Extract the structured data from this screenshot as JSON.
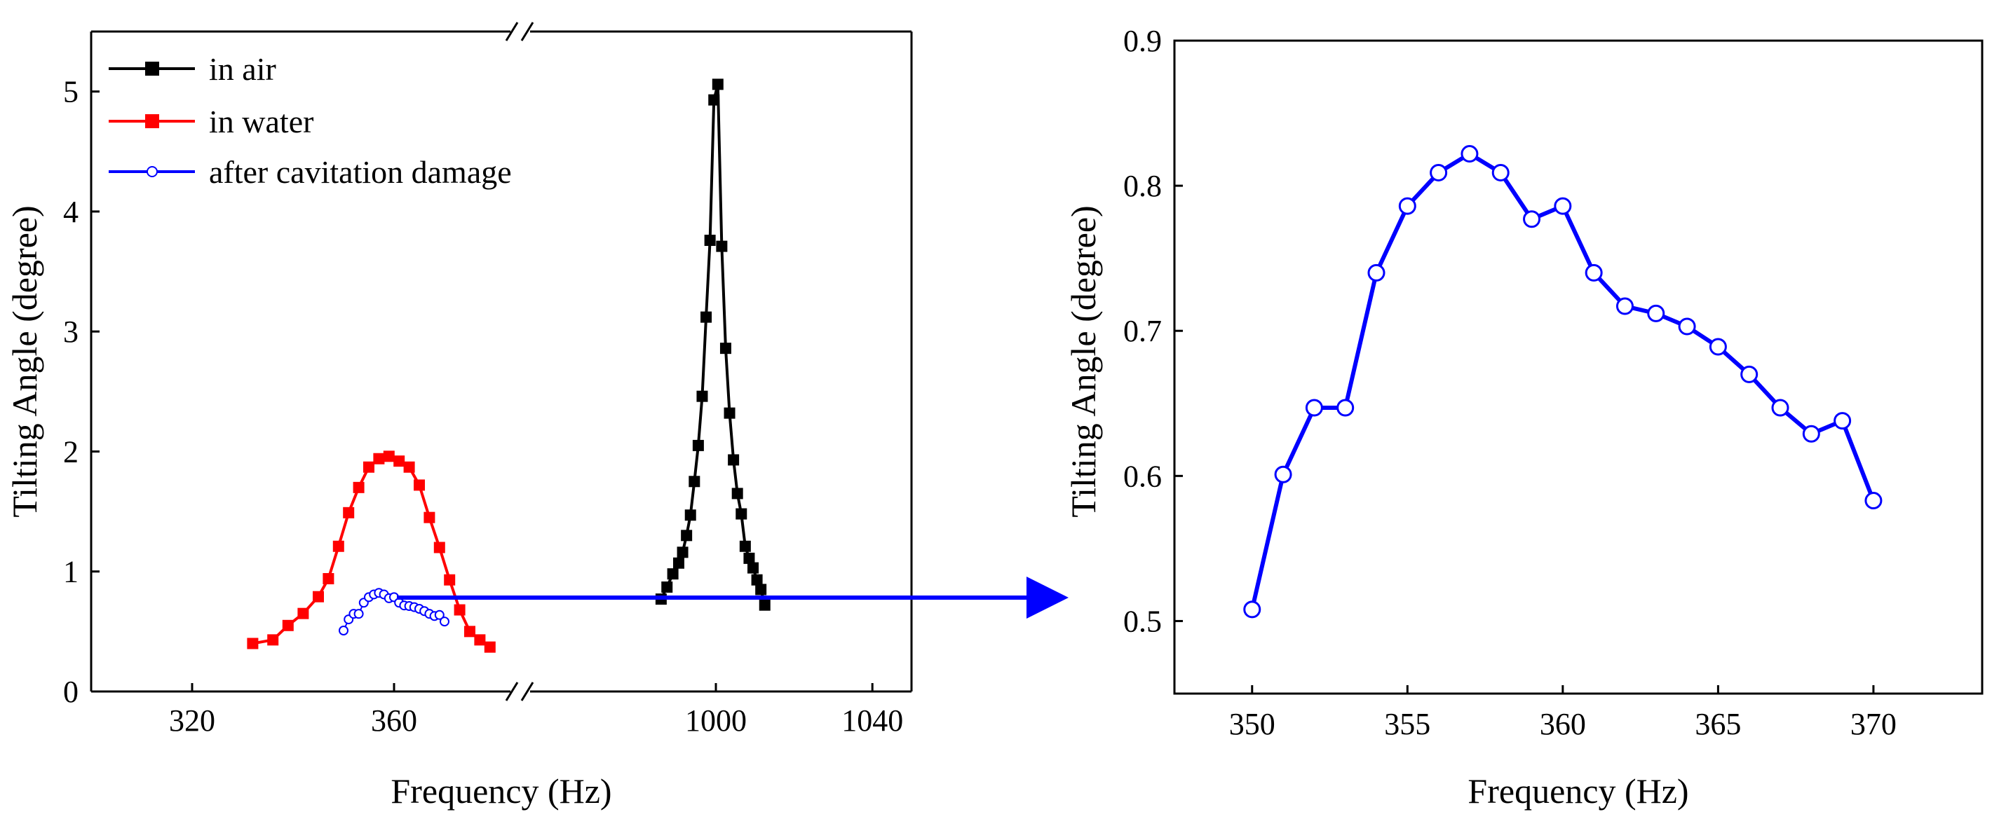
{
  "colors": {
    "air": "#000000",
    "water": "#ff0000",
    "cavitation": "#0000ff",
    "arrow": "#0000ff"
  },
  "chart_data": [
    {
      "type": "line",
      "xlabel": "Frequency (Hz)",
      "ylabel": "Tilting Angle (degree)",
      "axis_break": true,
      "xlim_left_segment": [
        300,
        385
      ],
      "xlim_right_segment": [
        950,
        1050
      ],
      "ylim": [
        0,
        5.5
      ],
      "x_ticks_left": [
        320,
        360
      ],
      "x_ticks_right": [
        1000,
        1040
      ],
      "y_ticks": [
        0,
        1,
        2,
        3,
        4,
        5
      ],
      "legend_position": "top-left",
      "series": [
        {
          "name": "in air",
          "marker": "filled-square",
          "x": [
            986,
            987.5,
            989,
            990.5,
            991.5,
            992.5,
            993.5,
            994.5,
            995.5,
            996.5,
            997.5,
            998.5,
            999.5,
            1000.5,
            1001.5,
            1002.5,
            1003.5,
            1004.5,
            1005.5,
            1006.5,
            1007.5,
            1008.5,
            1009.5,
            1010.5,
            1011.5,
            1012.5
          ],
          "values": [
            0.77,
            0.87,
            0.98,
            1.07,
            1.16,
            1.3,
            1.47,
            1.75,
            2.05,
            2.46,
            3.12,
            3.76,
            4.93,
            5.06,
            3.71,
            2.86,
            2.32,
            1.93,
            1.65,
            1.48,
            1.21,
            1.11,
            1.03,
            0.93,
            0.85,
            0.72
          ]
        },
        {
          "name": "in water",
          "marker": "filled-square",
          "x": [
            332,
            336,
            339,
            342,
            345,
            347,
            349,
            351,
            353,
            355,
            357,
            359,
            361,
            363,
            365,
            367,
            369,
            371,
            373,
            375,
            377,
            379
          ],
          "values": [
            0.4,
            0.43,
            0.55,
            0.65,
            0.79,
            0.94,
            1.21,
            1.49,
            1.7,
            1.87,
            1.94,
            1.96,
            1.92,
            1.87,
            1.72,
            1.45,
            1.2,
            0.93,
            0.68,
            0.5,
            0.43,
            0.37
          ]
        },
        {
          "name": "after cavitation damage",
          "marker": "open-circle",
          "x": [
            350,
            351,
            352,
            353,
            354,
            355,
            356,
            357,
            358,
            359,
            360,
            361,
            362,
            363,
            364,
            365,
            366,
            367,
            368,
            369,
            370
          ],
          "values": [
            0.508,
            0.601,
            0.647,
            0.647,
            0.74,
            0.786,
            0.809,
            0.822,
            0.809,
            0.777,
            0.786,
            0.74,
            0.717,
            0.712,
            0.703,
            0.689,
            0.67,
            0.647,
            0.629,
            0.638,
            0.583
          ]
        }
      ]
    },
    {
      "type": "line",
      "xlabel": "Frequency (Hz)",
      "ylabel": "Tilting Angle (degree)",
      "xlim": [
        347.5,
        373.5
      ],
      "ylim": [
        0.45,
        0.9
      ],
      "x_ticks": [
        350,
        355,
        360,
        365,
        370
      ],
      "y_ticks": [
        0.5,
        0.6,
        0.7,
        0.8,
        0.9
      ],
      "y_tick_labels": [
        "0.5",
        "0.6",
        "0.7",
        "0.8",
        "0.9"
      ],
      "series": [
        {
          "name": "after cavitation damage",
          "marker": "open-circle",
          "x": [
            350,
            351,
            352,
            353,
            354,
            355,
            356,
            357,
            358,
            359,
            360,
            361,
            362,
            363,
            364,
            365,
            366,
            367,
            368,
            369,
            370
          ],
          "values": [
            0.508,
            0.601,
            0.647,
            0.647,
            0.74,
            0.786,
            0.809,
            0.822,
            0.809,
            0.777,
            0.786,
            0.74,
            0.717,
            0.712,
            0.703,
            0.689,
            0.67,
            0.647,
            0.629,
            0.638,
            0.583
          ]
        }
      ]
    }
  ]
}
